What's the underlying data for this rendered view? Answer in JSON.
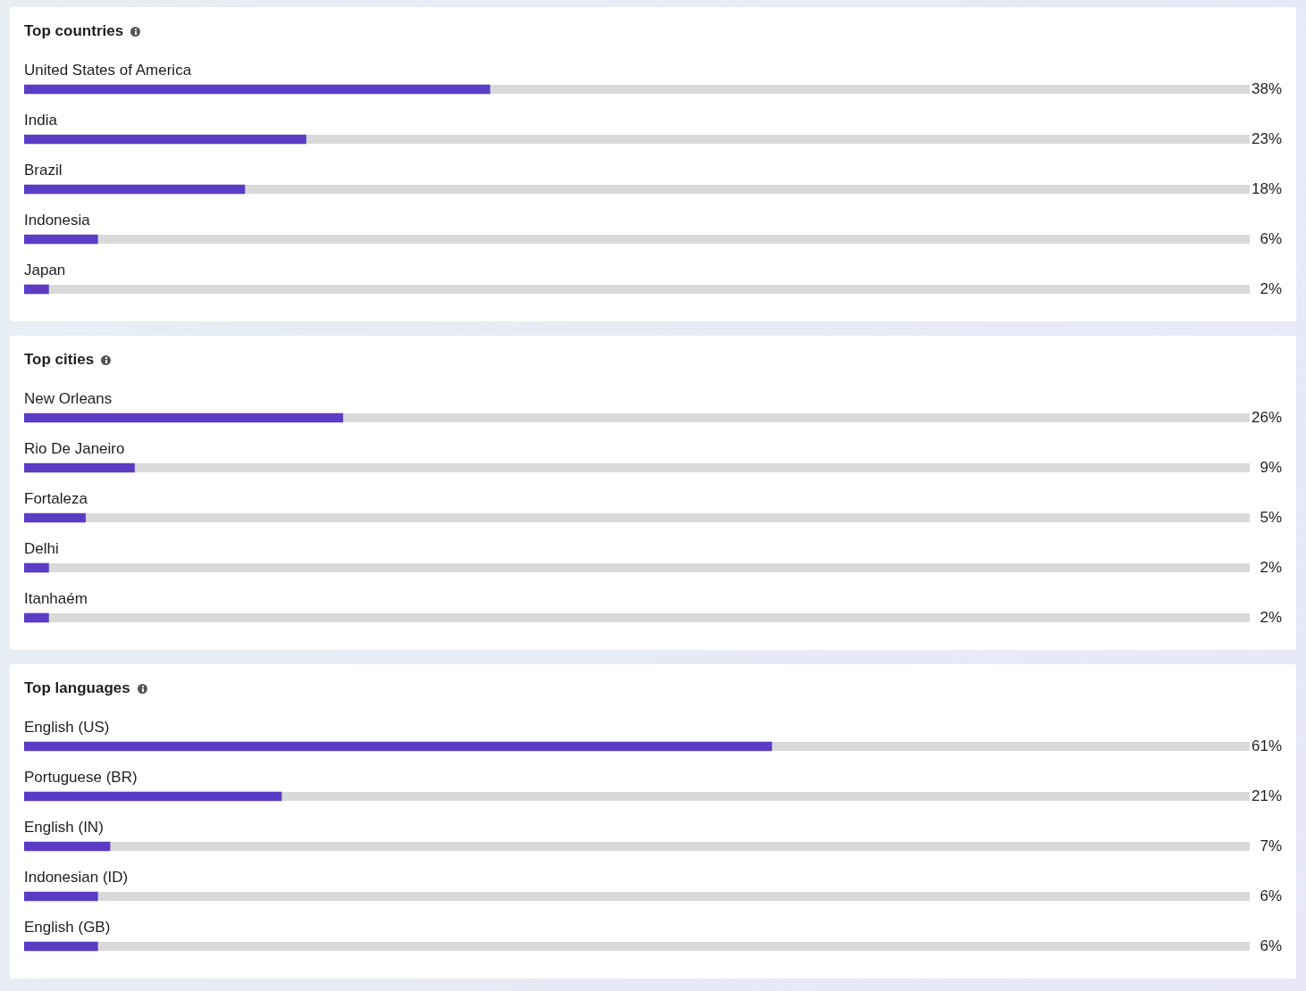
{
  "chart_data": [
    {
      "type": "bar",
      "orientation": "horizontal",
      "title": "Top countries",
      "categories": [
        "United States of America",
        "India",
        "Brazil",
        "Indonesia",
        "Japan"
      ],
      "values": [
        38,
        23,
        18,
        6,
        2
      ],
      "value_labels": [
        "38%",
        "23%",
        "18%",
        "6%",
        "2%"
      ],
      "color": "#5b3cc4",
      "xlim": [
        0,
        100
      ],
      "tick_labels": false
    },
    {
      "type": "bar",
      "orientation": "horizontal",
      "title": "Top cities",
      "categories": [
        "New Orleans",
        "Rio De Janeiro",
        "Fortaleza",
        "Delhi",
        "Itanhaém"
      ],
      "values": [
        26,
        9,
        5,
        2,
        2
      ],
      "value_labels": [
        "26%",
        "9%",
        "5%",
        "2%",
        "2%"
      ],
      "color": "#5b3cc4",
      "xlim": [
        0,
        100
      ],
      "tick_labels": false
    },
    {
      "type": "bar",
      "orientation": "horizontal",
      "title": "Top languages",
      "categories": [
        "English (US)",
        "Portuguese (BR)",
        "English (IN)",
        "Indonesian (ID)",
        "English (GB)"
      ],
      "values": [
        61,
        21,
        7,
        6,
        6
      ],
      "value_labels": [
        "61%",
        "21%",
        "7%",
        "6%",
        "6%"
      ],
      "color": "#5b3cc4",
      "xlim": [
        0,
        100
      ],
      "tick_labels": false
    }
  ]
}
